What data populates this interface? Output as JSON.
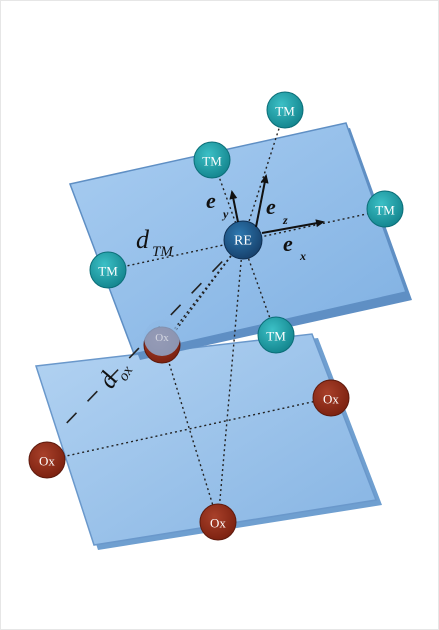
{
  "labels": {
    "re": "RE",
    "tm": "TM",
    "ox": "Ox",
    "ex": "e",
    "ex_sub": "x",
    "ey": "e",
    "ey_sub": "y",
    "ez": "e",
    "ez_sub": "z",
    "d_tm": "d",
    "d_tm_sub": "TM",
    "d_ox": "d",
    "d_ox_sub": "ox"
  },
  "colors": {
    "plane_fill": "#8fb9e6",
    "plane_edge": "#5f8fc4",
    "tm_fill": "#1f9aa3",
    "tm_stroke": "#0b6e78",
    "re_fill": "#1c5a8c",
    "ox_fill": "#8b2a18",
    "ox_stroke": "#5e1a0d"
  }
}
